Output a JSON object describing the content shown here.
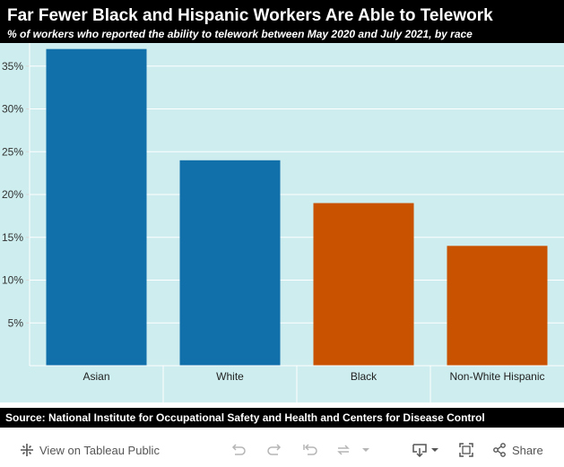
{
  "title": "Far Fewer Black and Hispanic Workers Are Able to Telework",
  "subtitle": "% of workers who reported the ability to telework between May 2020 and July 2021, by race",
  "source": "Source: National Institute for Occupational Safety and Health and Centers for Disease Control",
  "colors": {
    "blue": "#1170aa",
    "orange": "#c85200",
    "plot_bg": "#cdedee"
  },
  "chart_data": {
    "type": "bar",
    "categories": [
      "Asian",
      "White",
      "Black",
      "Non-White Hispanic"
    ],
    "values": [
      37,
      24,
      19,
      14
    ],
    "bar_colors": [
      "#1170aa",
      "#1170aa",
      "#c85200",
      "#c85200"
    ],
    "yticks": [
      5,
      10,
      15,
      20,
      25,
      30,
      35
    ],
    "ytick_labels": [
      "5%",
      "10%",
      "15%",
      "20%",
      "25%",
      "30%",
      "35%"
    ],
    "ylim": [
      0,
      37.7
    ],
    "xlabel": "",
    "ylabel": "",
    "grid": true
  },
  "toolbar": {
    "view_label": "View on Tableau Public",
    "share_label": "Share",
    "icons": [
      "tableau-icon",
      "undo-icon",
      "redo-icon",
      "revert-icon",
      "refresh-icon",
      "dropdown-icon",
      "download-icon",
      "fullscreen-icon",
      "share-icon"
    ]
  }
}
